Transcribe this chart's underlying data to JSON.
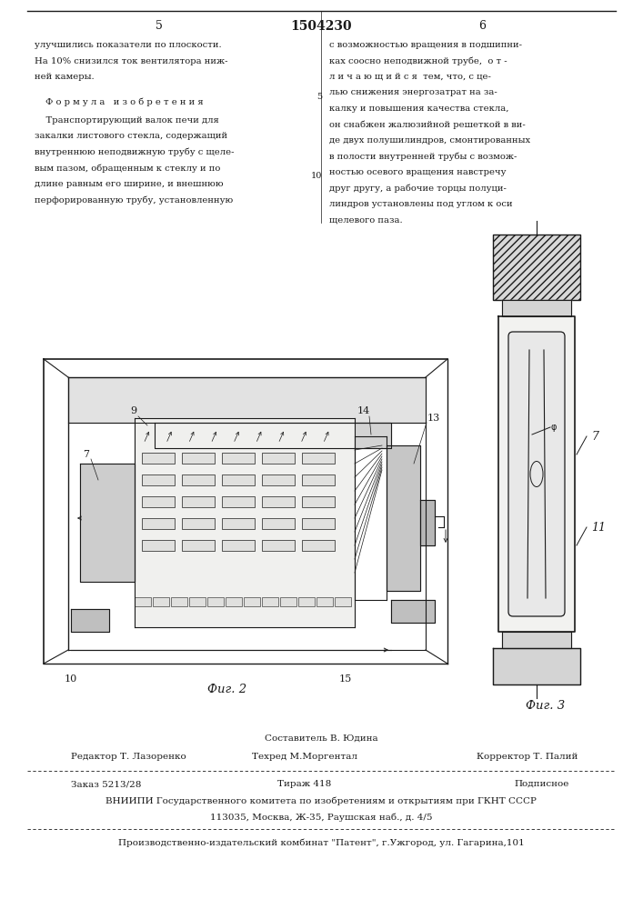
{
  "page_width": 7.07,
  "page_height": 10.0,
  "bg_color": "#ffffff",
  "patent_number": "1504230",
  "text_color": "#1a1a1a",
  "line_color": "#1a1a1a",
  "top_text_left": [
    "улучшились показатели по плоскости.",
    "На 10% снизился ток вентилятора ниж-",
    "ней камеры."
  ],
  "formula_heading": "Ф о р м у л а   и з о б р е т е н и я",
  "formula_lines": [
    "    Транспортирующий валок печи для",
    "закалки листового стекла, содержащий",
    "внутреннюю неподвижную трубу с щеле-",
    "вым пазом, обращенным к стеклу и по",
    "длине равным его ширине, и внешнюю",
    "перфорированную трубу, установленную"
  ],
  "top_text_right": [
    "с возможностью вращения в подшипни-",
    "ках соосно неподвижной трубе,  о т -",
    "л и ч а ю щ и й с я  тем, что, с це-",
    "лью снижения энергозатрат на за-",
    "калку и повышения качества стекла,",
    "он снабжен жалюзийной решеткой в ви-",
    "де двух полушилиндров, смонтированных",
    "в полости внутренней трубы с возмож-",
    "ностью осевого вращения навстречу",
    "друг другу, а рабочие торцы полуци-",
    "линдров установлены под углом к оси",
    "щелевого паза."
  ],
  "fig2_label": "Фиг. 2",
  "fig3_label": "Фиг. 3",
  "footer_составитель": "Составитель В. Юдина",
  "footer_редактор": "Редактор Т. Лазоренко",
  "footer_техред": "Техред М.Моргентал",
  "footer_корректор": "Корректор Т. Палий",
  "footer_заказ": "Заказ 5213/28",
  "footer_тираж": "Тираж 418",
  "footer_подписное": "Подписное",
  "footer_вниипи": "ВНИИПИ Государственного комитета по изобретениям и открытиям при ГКНТ СССР",
  "footer_адрес": "113035, Москва, Ж-35, Раушская наб., д. 4/5",
  "footer_комбинат": "Производственно-издательский комбинат \"Патент\", г.Ужгород, ул. Гагарина,101"
}
